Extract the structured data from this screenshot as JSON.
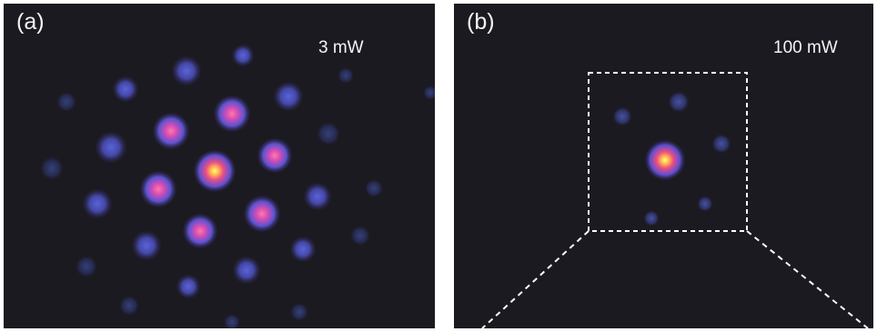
{
  "panels": [
    {
      "label": "(a)",
      "power": "3 mW"
    },
    {
      "label": "(b)",
      "power": "100 mW"
    }
  ],
  "colors": {
    "background": "#1c1a21",
    "weak_spot": "#3f3c8c",
    "mid_spot": "#d14fb0",
    "peak_spot": "#fff07a",
    "dashed_box": "#ffffff"
  }
}
